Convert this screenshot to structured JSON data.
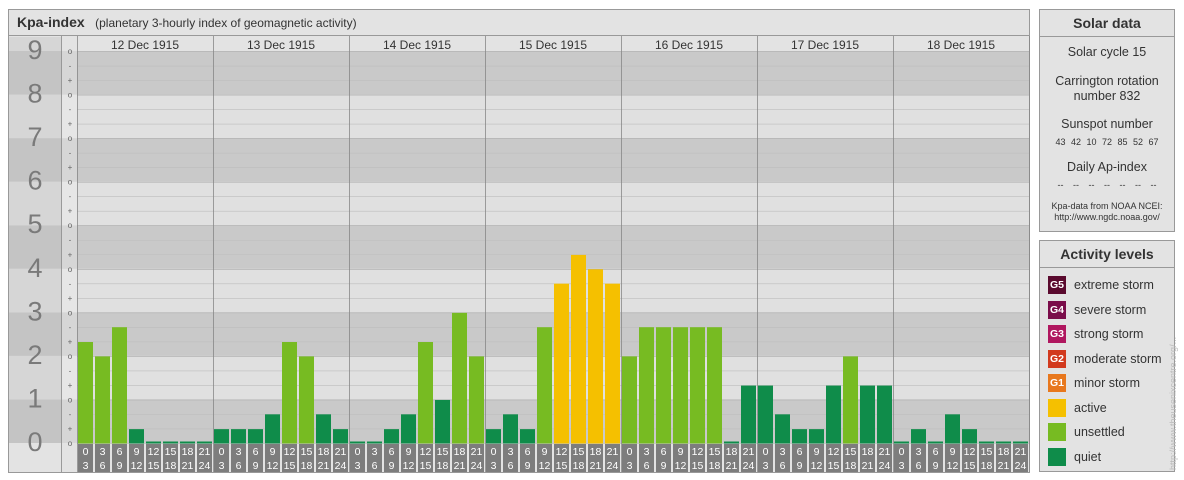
{
  "chart": {
    "title": "Kpa-index",
    "subtitle": "(planetary 3-hourly index of geomagnetic activity)"
  },
  "chart_data": {
    "type": "bar",
    "days": [
      "12 Dec 1915",
      "13 Dec 1915",
      "14 Dec 1915",
      "15 Dec 1915",
      "16 Dec 1915",
      "17 Dec 1915",
      "18 Dec 1915"
    ],
    "hour_ranges": [
      [
        "0",
        "3"
      ],
      [
        "3",
        "6"
      ],
      [
        "6",
        "9"
      ],
      [
        "9",
        "12"
      ],
      [
        "12",
        "15"
      ],
      [
        "15",
        "18"
      ],
      [
        "18",
        "21"
      ],
      [
        "21",
        "24"
      ]
    ],
    "values": [
      [
        2.33,
        2.0,
        2.67,
        0.33,
        0,
        0,
        0,
        0
      ],
      [
        0.33,
        0.33,
        0.33,
        0.67,
        2.33,
        2.0,
        0.67,
        0.33
      ],
      [
        0,
        0,
        0.33,
        0.67,
        2.33,
        1.0,
        3.0,
        2.0
      ],
      [
        0.33,
        0.67,
        0.33,
        2.67,
        3.67,
        4.33,
        4.0,
        3.67
      ],
      [
        2.0,
        2.67,
        2.67,
        2.67,
        2.67,
        2.67,
        0,
        1.33
      ],
      [
        1.33,
        0.67,
        0.33,
        0.33,
        1.33,
        2.0,
        1.33,
        1.33
      ],
      [
        0,
        0.33,
        0,
        0.67,
        0.33,
        0,
        0,
        0
      ]
    ],
    "ylim": [
      0,
      9
    ],
    "y_ticks": [
      "0",
      "1",
      "2",
      "3",
      "4",
      "5",
      "6",
      "7",
      "8",
      "9"
    ],
    "sub_tick_labels": [
      "+",
      "o",
      "-"
    ],
    "levels_colors": {
      "quiet": "#0f8c4a",
      "unsettled": "#77bb22",
      "active": "#f5c000"
    }
  },
  "solar": {
    "title": "Solar data",
    "cycle": "Solar cycle 15",
    "carrington_line1": "Carrington rotation",
    "carrington_line2": "number 832",
    "sunspot_title": "Sunspot number",
    "sunspot_values": [
      "43",
      "42",
      "10",
      "72",
      "85",
      "52",
      "67"
    ],
    "ap_title": "Daily Ap-index",
    "ap_values": [
      "--",
      "--",
      "--",
      "--",
      "--",
      "--",
      "--"
    ],
    "source_line1": "Kpa-data from NOAA NCEI:",
    "source_line2": "http://www.ngdc.noaa.gov/"
  },
  "legend": {
    "title": "Activity levels",
    "items": [
      {
        "code": "G5",
        "label": "extreme storm",
        "color": "#5a0a2e"
      },
      {
        "code": "G4",
        "label": "severe storm",
        "color": "#7a0d4a"
      },
      {
        "code": "G3",
        "label": "strong storm",
        "color": "#b0175f"
      },
      {
        "code": "G2",
        "label": "moderate storm",
        "color": "#d23a1e"
      },
      {
        "code": "G1",
        "label": "minor storm",
        "color": "#e8781e"
      },
      {
        "code": "",
        "label": "active",
        "color": "#f5c000"
      },
      {
        "code": "",
        "label": "unsettled",
        "color": "#77bb22"
      },
      {
        "code": "",
        "label": "quiet",
        "color": "#0f8c4a"
      }
    ]
  },
  "side_url": "http://www.theusenixcentre.org/..."
}
